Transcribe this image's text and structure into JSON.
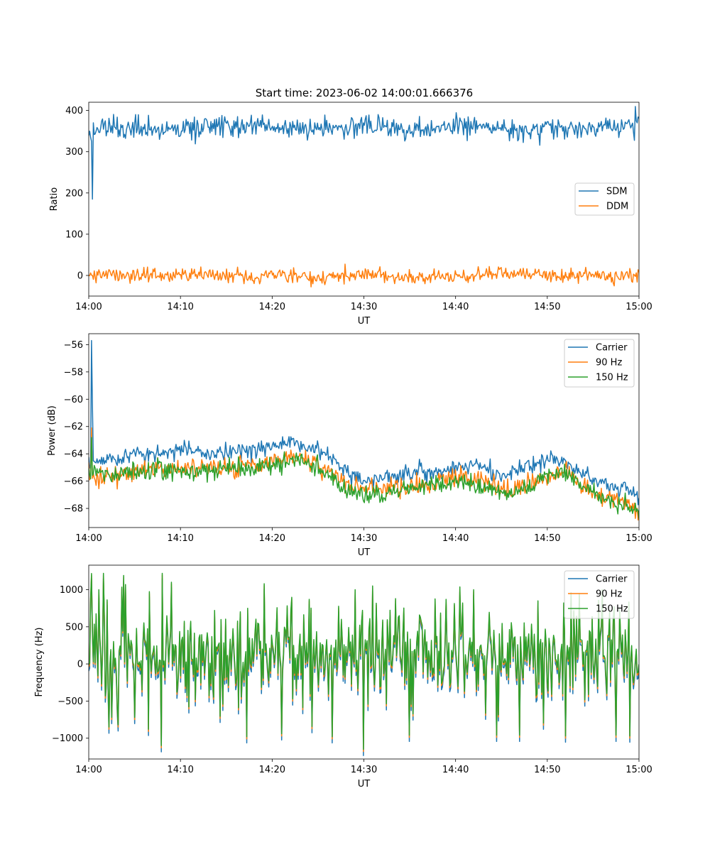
{
  "figure": {
    "title": "Start time: 2023-06-02 14:00:01.666376"
  },
  "chart_data": [
    {
      "type": "line",
      "xlabel": "UT",
      "ylabel": "Ratio",
      "xlim": [
        "14:00",
        "15:00"
      ],
      "xticks": [
        "14:00",
        "14:10",
        "14:20",
        "14:30",
        "14:40",
        "14:50",
        "15:00"
      ],
      "ylim": [
        -50,
        420
      ],
      "yticks": [
        0,
        100,
        200,
        300,
        400
      ],
      "legend": {
        "position": "center-right",
        "entries": [
          "SDM",
          "DDM"
        ]
      },
      "series": [
        {
          "name": "SDM",
          "color": "#1f77b4",
          "mean": 355,
          "noise": 13,
          "spikes": [
            [
              0.4,
              185
            ]
          ],
          "anchors": [
            [
              0,
              340
            ],
            [
              0.5,
              355
            ],
            [
              1,
              348
            ],
            [
              2,
              362
            ],
            [
              3,
              355
            ],
            [
              5,
              352
            ],
            [
              8,
              358
            ],
            [
              10,
              350
            ],
            [
              12,
              357
            ],
            [
              15,
              360
            ],
            [
              18,
              362
            ],
            [
              20,
              360
            ],
            [
              25,
              355
            ],
            [
              30,
              362
            ],
            [
              35,
              355
            ],
            [
              40,
              362
            ],
            [
              45,
              355
            ],
            [
              50,
              356
            ],
            [
              55,
              358
            ],
            [
              60,
              360
            ]
          ]
        },
        {
          "name": "DDM",
          "color": "#ff7f0e",
          "mean": 0,
          "noise": 8,
          "anchors": [
            [
              0,
              -2
            ],
            [
              2,
              5
            ],
            [
              4,
              -3
            ],
            [
              6,
              2
            ],
            [
              10,
              0
            ],
            [
              15,
              -2
            ],
            [
              20,
              3
            ],
            [
              25,
              -5
            ],
            [
              30,
              2
            ],
            [
              35,
              -3
            ],
            [
              40,
              -2
            ],
            [
              45,
              5
            ],
            [
              50,
              2
            ],
            [
              55,
              0
            ],
            [
              60,
              -3
            ]
          ]
        }
      ]
    },
    {
      "type": "line",
      "xlabel": "UT",
      "ylabel": "Power (dB)",
      "xlim": [
        "14:00",
        "15:00"
      ],
      "xticks": [
        "14:00",
        "14:10",
        "14:20",
        "14:30",
        "14:40",
        "14:50",
        "15:00"
      ],
      "ylim": [
        -69.4,
        -55.2
      ],
      "yticks": [
        -68,
        -66,
        -64,
        -62,
        -60,
        -58,
        -56
      ],
      "legend": {
        "position": "top-right",
        "entries": [
          "Carrier",
          "90 Hz",
          "150 Hz"
        ]
      },
      "series": [
        {
          "name": "Carrier",
          "color": "#1f77b4",
          "noise": 0.3,
          "spikes": [
            [
              0.3,
              -55.7
            ],
            [
              0.4,
              -60.5
            ]
          ],
          "anchors": [
            [
              0,
              -64.8
            ],
            [
              1,
              -64.4
            ],
            [
              3,
              -64.4
            ],
            [
              5,
              -64.0
            ],
            [
              8,
              -63.9
            ],
            [
              10,
              -63.6
            ],
            [
              13,
              -64.0
            ],
            [
              16,
              -63.9
            ],
            [
              20,
              -63.5
            ],
            [
              22,
              -63.2
            ],
            [
              24,
              -63.6
            ],
            [
              26,
              -64.0
            ],
            [
              27,
              -64.6
            ],
            [
              28,
              -65.4
            ],
            [
              30,
              -66.1
            ],
            [
              33,
              -65.7
            ],
            [
              36,
              -65.2
            ],
            [
              38,
              -65.4
            ],
            [
              40,
              -65.0
            ],
            [
              42,
              -64.7
            ],
            [
              44,
              -65.2
            ],
            [
              45,
              -65.7
            ],
            [
              46,
              -65.4
            ],
            [
              48,
              -64.9
            ],
            [
              50,
              -64.5
            ],
            [
              51,
              -64.3
            ],
            [
              53,
              -65.0
            ],
            [
              55,
              -66.0
            ],
            [
              58,
              -66.4
            ],
            [
              60,
              -67.2
            ]
          ]
        },
        {
          "name": "90 Hz",
          "color": "#ff7f0e",
          "noise": 0.35,
          "spikes": [
            [
              0.35,
              -62.1
            ]
          ],
          "anchors": [
            [
              0,
              -65.6
            ],
            [
              1,
              -65.6
            ],
            [
              3,
              -65.5
            ],
            [
              5,
              -65.3
            ],
            [
              8,
              -65.1
            ],
            [
              12,
              -64.9
            ],
            [
              16,
              -65.0
            ],
            [
              20,
              -64.6
            ],
            [
              22,
              -64.2
            ],
            [
              25,
              -64.7
            ],
            [
              27,
              -65.6
            ],
            [
              28,
              -66.3
            ],
            [
              30,
              -66.6
            ],
            [
              35,
              -66.4
            ],
            [
              40,
              -65.8
            ],
            [
              42,
              -65.9
            ],
            [
              44,
              -66.2
            ],
            [
              46,
              -66.9
            ],
            [
              48,
              -66.2
            ],
            [
              50,
              -65.6
            ],
            [
              52,
              -65.3
            ],
            [
              54,
              -66.4
            ],
            [
              56,
              -67.2
            ],
            [
              58,
              -67.6
            ],
            [
              60,
              -68.0
            ]
          ]
        },
        {
          "name": "150 Hz",
          "color": "#2ca02c",
          "noise": 0.35,
          "spikes": [
            [
              0.35,
              -62.8
            ]
          ],
          "anchors": [
            [
              0,
              -65.3
            ],
            [
              1,
              -65.3
            ],
            [
              3,
              -65.5
            ],
            [
              5,
              -65.4
            ],
            [
              8,
              -65.3
            ],
            [
              12,
              -65.2
            ],
            [
              16,
              -65.2
            ],
            [
              20,
              -64.9
            ],
            [
              22,
              -64.4
            ],
            [
              25,
              -65.0
            ],
            [
              27,
              -65.9
            ],
            [
              28,
              -66.7
            ],
            [
              30,
              -67.1
            ],
            [
              35,
              -66.6
            ],
            [
              40,
              -66.0
            ],
            [
              42,
              -66.3
            ],
            [
              44,
              -66.6
            ],
            [
              46,
              -67.0
            ],
            [
              48,
              -66.3
            ],
            [
              50,
              -65.6
            ],
            [
              52,
              -65.3
            ],
            [
              54,
              -66.4
            ],
            [
              56,
              -67.2
            ],
            [
              58,
              -67.8
            ],
            [
              60,
              -68.1
            ]
          ]
        }
      ]
    },
    {
      "type": "line",
      "xlabel": "UT",
      "ylabel": "Frequency (Hz)",
      "xlim": [
        "14:00",
        "15:00"
      ],
      "xticks": [
        "14:00",
        "14:10",
        "14:20",
        "14:30",
        "14:40",
        "14:50",
        "15:00"
      ],
      "ylim": [
        -1280,
        1330
      ],
      "yticks": [
        -1000,
        -500,
        0,
        500,
        1000
      ],
      "legend": {
        "position": "top-right",
        "entries": [
          "Carrier",
          "90 Hz",
          "150 Hz"
        ]
      },
      "series": [
        {
          "name": "Carrier",
          "color": "#1f77b4",
          "offset": -70
        },
        {
          "name": "90 Hz",
          "color": "#ff7f0e",
          "offset": -25
        },
        {
          "name": "150 Hz",
          "color": "#2ca02c",
          "offset": 0
        }
      ],
      "signal": {
        "range": [
          -1100,
          1220
        ],
        "spikes": [
          [
            0.2,
            880
          ],
          [
            1.1,
            1000
          ],
          [
            1.6,
            1220
          ],
          [
            2.2,
            -850
          ],
          [
            3.2,
            -820
          ],
          [
            4.0,
            1070
          ],
          [
            5.0,
            -720
          ],
          [
            6.5,
            -880
          ],
          [
            7.9,
            -1100
          ],
          [
            8.0,
            1220
          ],
          [
            9.0,
            1100
          ],
          [
            17.2,
            -980
          ],
          [
            19.1,
            1080
          ],
          [
            21.0,
            -940
          ],
          [
            24.0,
            870
          ],
          [
            26.5,
            -980
          ],
          [
            29.0,
            1000
          ],
          [
            30.0,
            -1150
          ],
          [
            31.0,
            1050
          ],
          [
            33.5,
            880
          ],
          [
            35.0,
            -960
          ],
          [
            39.0,
            870
          ],
          [
            42.0,
            1000
          ],
          [
            44.5,
            -960
          ],
          [
            47.0,
            -960
          ],
          [
            49.0,
            850
          ],
          [
            52.0,
            -970
          ],
          [
            53.5,
            950
          ],
          [
            56.0,
            1000
          ],
          [
            57.5,
            -960
          ],
          [
            59.0,
            -970
          ],
          [
            59.7,
            200
          ]
        ]
      }
    }
  ]
}
